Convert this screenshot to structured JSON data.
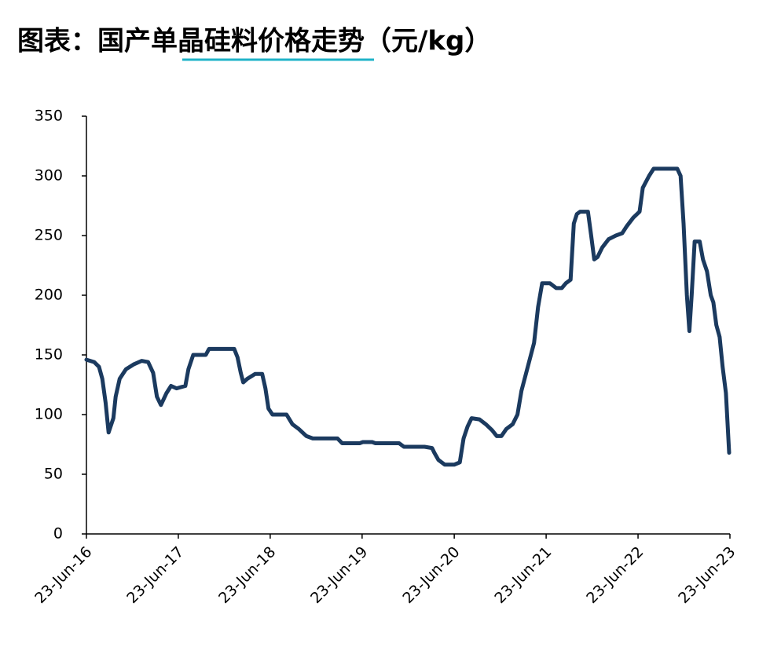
{
  "chart_data": {
    "type": "line",
    "title": "图表：国产单晶硅料价格走势（元/kg）",
    "x": [
      "2016-06-23",
      "2016-07-24",
      "2016-08-12",
      "2016-08-25",
      "2016-09-07",
      "2016-09-19",
      "2016-10-08",
      "2016-10-17",
      "2016-11-02",
      "2016-11-27",
      "2016-12-27",
      "2017-01-28",
      "2017-02-23",
      "2017-03-15",
      "2017-03-30",
      "2017-04-15",
      "2017-05-07",
      "2017-05-25",
      "2017-06-16",
      "2017-07-21",
      "2017-08-02",
      "2017-08-21",
      "2017-10-10",
      "2017-10-23",
      "2018-01-31",
      "2018-02-13",
      "2018-02-26",
      "2018-03-08",
      "2018-03-24",
      "2018-04-24",
      "2018-05-22",
      "2018-06-04",
      "2018-06-16",
      "2018-07-02",
      "2018-08-27",
      "2018-09-19",
      "2018-10-14",
      "2018-11-14",
      "2018-12-09",
      "2019-03-17",
      "2019-04-05",
      "2019-04-30",
      "2019-06-13",
      "2019-06-26",
      "2019-08-02",
      "2019-08-15",
      "2019-11-17",
      "2019-12-06",
      "2020-02-26",
      "2020-03-27",
      "2020-04-05",
      "2020-04-21",
      "2020-05-16",
      "2020-06-23",
      "2020-07-15",
      "2020-07-30",
      "2020-08-15",
      "2020-08-31",
      "2020-10-01",
      "2020-10-26",
      "2020-11-20",
      "2020-12-09",
      "2020-12-27",
      "2021-01-16",
      "2021-02-10",
      "2021-03-01",
      "2021-03-17",
      "2021-04-11",
      "2021-05-06",
      "2021-05-22",
      "2021-06-07",
      "2021-07-08",
      "2021-08-02",
      "2021-08-24",
      "2021-09-09",
      "2021-09-28",
      "2021-10-11",
      "2021-10-23",
      "2021-11-05",
      "2021-12-06",
      "2021-12-19",
      "2021-12-31",
      "2022-01-13",
      "2022-02-01",
      "2022-02-26",
      "2022-03-27",
      "2022-04-21",
      "2022-05-10",
      "2022-06-04",
      "2022-06-29",
      "2022-07-12",
      "2022-08-06",
      "2022-08-24",
      "2022-11-26",
      "2022-12-09",
      "2022-12-21",
      "2023-01-03",
      "2023-01-13",
      "2023-01-22",
      "2023-02-03",
      "2023-02-23",
      "2023-03-08",
      "2023-03-24",
      "2023-04-08",
      "2023-04-18",
      "2023-04-30",
      "2023-05-13",
      "2023-05-25",
      "2023-06-07",
      "2023-06-20"
    ],
    "series": [
      {
        "name": "国产单晶硅料价格",
        "color": "#1b3a5f",
        "values": [
          146,
          144,
          140,
          130,
          110,
          85,
          97,
          115,
          130,
          138,
          142,
          145,
          144,
          135,
          115,
          108,
          118,
          124,
          122,
          124,
          138,
          150,
          150,
          155,
          155,
          148,
          135,
          127,
          130,
          134,
          134,
          122,
          105,
          100,
          100,
          92,
          88,
          82,
          80,
          80,
          76,
          76,
          76,
          77,
          77,
          76,
          76,
          73,
          73,
          72,
          68,
          62,
          58,
          58,
          60,
          80,
          90,
          97,
          96,
          92,
          87,
          82,
          82,
          88,
          92,
          100,
          120,
          140,
          160,
          190,
          210,
          210,
          206,
          206,
          210,
          213,
          260,
          268,
          270,
          270,
          250,
          230,
          232,
          240,
          247,
          250,
          252,
          258,
          265,
          270,
          290,
          300,
          306,
          306,
          300,
          260,
          200,
          170,
          200,
          245,
          245,
          230,
          220,
          200,
          194,
          175,
          165,
          140,
          118,
          68
        ]
      }
    ],
    "xlim": [
      "2016-06-23",
      "2023-06-23"
    ],
    "xticks": [
      {
        "value": "2016-06-23",
        "label": "23-Jun-16"
      },
      {
        "value": "2017-06-23",
        "label": "23-Jun-17"
      },
      {
        "value": "2018-06-23",
        "label": "23-Jun-18"
      },
      {
        "value": "2019-06-23",
        "label": "23-Jun-19"
      },
      {
        "value": "2020-06-23",
        "label": "23-Jun-20"
      },
      {
        "value": "2021-06-23",
        "label": "23-Jun-21"
      },
      {
        "value": "2022-06-23",
        "label": "23-Jun-22"
      },
      {
        "value": "2023-06-23",
        "label": "23-Jun-23"
      }
    ],
    "ylim": [
      0,
      350
    ],
    "yticks": [
      0,
      50,
      100,
      150,
      200,
      250,
      300,
      350
    ],
    "grid": false
  }
}
